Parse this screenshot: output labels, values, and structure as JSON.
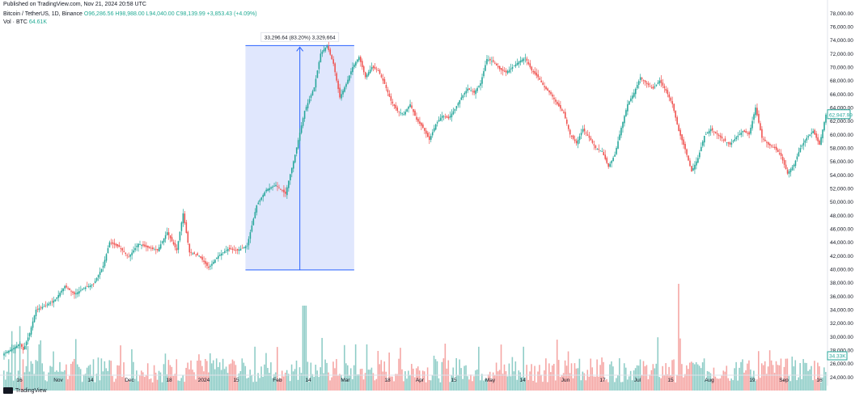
{
  "header": {
    "published": "Published on TradingView.com, Nov 21, 2024 20:58 UTC",
    "symbol": "Bitcoin / TetherUS, 1D, Binance",
    "ohlc": "O96,286.56 H98,988.00 L94,040.00 C98,139.99 +3,853.43 (+4.09%)",
    "volume_label": "Vol · BTC",
    "volume_value": "64.61K"
  },
  "footer": {
    "brand": "TradingView"
  },
  "measure": {
    "label": "33,296.64 (83.20%) 3,329,664"
  },
  "colors": {
    "up": "#26a69a",
    "down": "#ef5350",
    "vol_up": "#8fcdc7",
    "vol_down": "#f5a6a4",
    "measure_fill": "#dbe3fd",
    "measure_line": "#2962ff",
    "last_price": "#26a69a",
    "last_volume": "#26a69a"
  },
  "chart_data": {
    "type": "candlestick",
    "symbol": "Bitcoin / TetherUS",
    "interval": "1D",
    "ylim": [
      22000,
      79000
    ],
    "y_ticks": [
      "24,000.00",
      "26,000.00",
      "28,000.00",
      "30,000.00",
      "32,000.00",
      "34,000.00",
      "36,000.00",
      "38,000.00",
      "40,000.00",
      "42,000.00",
      "44,000.00",
      "46,000.00",
      "48,000.00",
      "50,000.00",
      "52,000.00",
      "54,000.00",
      "56,000.00",
      "58,000.00",
      "60,000.00",
      "62,000.00",
      "64,000.00",
      "66,000.00",
      "68,000.00",
      "70,000.00",
      "72,000.00",
      "74,000.00",
      "76,000.00",
      "78,000.00"
    ],
    "x_ticks": [
      "16",
      "Nov",
      "14",
      "Dec",
      "18",
      "2024",
      "15",
      "Feb",
      "14",
      "Mar",
      "18",
      "Apr",
      "15",
      "May",
      "14",
      "Jun",
      "17",
      "Jul",
      "15",
      "Aug",
      "19",
      "Sep",
      "16"
    ],
    "last_price": "62,947.99",
    "last_volume": "34.33K",
    "close_path": [
      [
        0,
        27500
      ],
      [
        6,
        28300
      ],
      [
        10,
        29000
      ],
      [
        12,
        28000
      ],
      [
        16,
        30500
      ],
      [
        20,
        34000
      ],
      [
        26,
        34600
      ],
      [
        32,
        35500
      ],
      [
        38,
        37500
      ],
      [
        44,
        36300
      ],
      [
        50,
        37200
      ],
      [
        56,
        37800
      ],
      [
        62,
        40500
      ],
      [
        66,
        44000
      ],
      [
        72,
        43300
      ],
      [
        78,
        41800
      ],
      [
        84,
        43800
      ],
      [
        90,
        43200
      ],
      [
        96,
        42800
      ],
      [
        102,
        45500
      ],
      [
        108,
        42800
      ],
      [
        112,
        48300
      ],
      [
        116,
        42500
      ],
      [
        122,
        42000
      ],
      [
        128,
        40200
      ],
      [
        134,
        42000
      ],
      [
        140,
        43000
      ],
      [
        146,
        42800
      ],
      [
        152,
        43500
      ],
      [
        158,
        49500
      ],
      [
        164,
        51800
      ],
      [
        170,
        52500
      ],
      [
        176,
        51200
      ],
      [
        182,
        57000
      ],
      [
        188,
        63500
      ],
      [
        194,
        67000
      ],
      [
        198,
        72000
      ],
      [
        202,
        73200
      ],
      [
        206,
        70500
      ],
      [
        210,
        65500
      ],
      [
        214,
        67500
      ],
      [
        218,
        70000
      ],
      [
        222,
        71500
      ],
      [
        226,
        68500
      ],
      [
        230,
        70000
      ],
      [
        234,
        69500
      ],
      [
        238,
        67500
      ],
      [
        242,
        65000
      ],
      [
        246,
        63500
      ],
      [
        250,
        63000
      ],
      [
        254,
        64500
      ],
      [
        258,
        62200
      ],
      [
        262,
        61000
      ],
      [
        266,
        59200
      ],
      [
        270,
        61500
      ],
      [
        274,
        62800
      ],
      [
        278,
        62400
      ],
      [
        282,
        63800
      ],
      [
        286,
        65500
      ],
      [
        290,
        66800
      ],
      [
        294,
        66200
      ],
      [
        298,
        67600
      ],
      [
        302,
        71200
      ],
      [
        306,
        70800
      ],
      [
        310,
        69700
      ],
      [
        314,
        69200
      ],
      [
        318,
        70000
      ],
      [
        322,
        70800
      ],
      [
        326,
        71400
      ],
      [
        330,
        69500
      ],
      [
        334,
        68500
      ],
      [
        338,
        67000
      ],
      [
        342,
        66000
      ],
      [
        346,
        64500
      ],
      [
        350,
        63200
      ],
      [
        354,
        60000
      ],
      [
        358,
        58700
      ],
      [
        362,
        60800
      ],
      [
        366,
        59500
      ],
      [
        370,
        58000
      ],
      [
        374,
        57500
      ],
      [
        378,
        55200
      ],
      [
        382,
        57000
      ],
      [
        386,
        61000
      ],
      [
        390,
        64500
      ],
      [
        394,
        66200
      ],
      [
        398,
        68500
      ],
      [
        402,
        67500
      ],
      [
        406,
        66800
      ],
      [
        410,
        68000
      ],
      [
        414,
        66500
      ],
      [
        418,
        64500
      ],
      [
        422,
        60500
      ],
      [
        426,
        57800
      ],
      [
        430,
        54500
      ],
      [
        434,
        56500
      ],
      [
        438,
        59800
      ],
      [
        442,
        60800
      ],
      [
        446,
        60000
      ],
      [
        450,
        59200
      ],
      [
        454,
        58500
      ],
      [
        458,
        59600
      ],
      [
        462,
        60500
      ],
      [
        466,
        60000
      ],
      [
        470,
        64000
      ],
      [
        474,
        59500
      ],
      [
        478,
        58500
      ],
      [
        482,
        58000
      ],
      [
        486,
        56800
      ],
      [
        490,
        54200
      ],
      [
        494,
        55500
      ],
      [
        498,
        58000
      ],
      [
        502,
        59500
      ],
      [
        506,
        60500
      ],
      [
        510,
        58500
      ],
      [
        514,
        62947.99
      ]
    ],
    "measure": {
      "start_price": 39900,
      "end_price": 73200,
      "change": "33,296.64",
      "change_pct": "83.20%",
      "volume": "3,329,664"
    },
    "volume_peak_dates": [
      "Mar",
      "Aug"
    ]
  }
}
